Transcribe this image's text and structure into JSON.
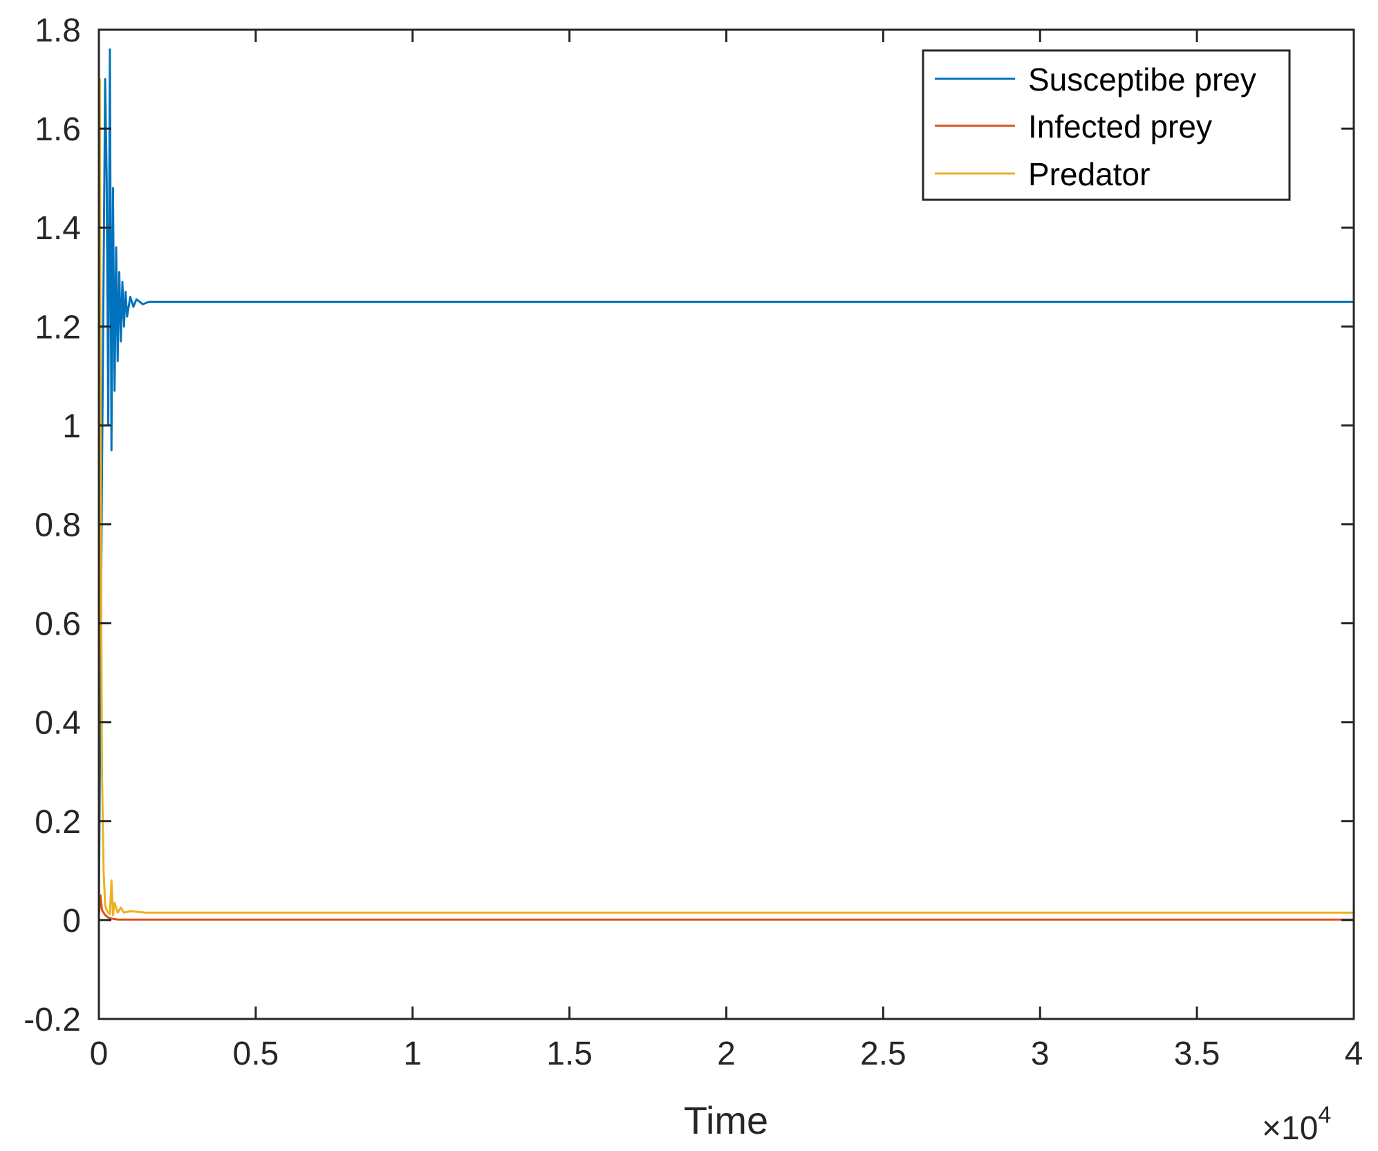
{
  "chart_data": {
    "type": "line",
    "title": "",
    "xlabel": "Time",
    "ylabel": "",
    "x_exponent_label": "×10",
    "x_exponent_power": "4",
    "xlim": [
      0,
      4
    ],
    "ylim": [
      -0.2,
      1.8
    ],
    "xticks": [
      0,
      0.5,
      1,
      1.5,
      2,
      2.5,
      3,
      3.5,
      4
    ],
    "xtick_labels": [
      "0",
      "0.5",
      "1",
      "1.5",
      "2",
      "2.5",
      "3",
      "3.5",
      "4"
    ],
    "yticks": [
      -0.2,
      0,
      0.2,
      0.4,
      0.6,
      0.8,
      1,
      1.2,
      1.4,
      1.6,
      1.8
    ],
    "ytick_labels": [
      "-0.2",
      "0",
      "0.2",
      "0.4",
      "0.6",
      "0.8",
      "1",
      "1.2",
      "1.4",
      "1.6",
      "1.8"
    ],
    "grid": false,
    "legend_position": "top-right",
    "series": [
      {
        "name": "Susceptibe prey",
        "color": "#0072BD",
        "x": [
          0,
          0.01,
          0.02,
          0.025,
          0.03,
          0.035,
          0.04,
          0.045,
          0.05,
          0.055,
          0.06,
          0.065,
          0.07,
          0.075,
          0.08,
          0.085,
          0.09,
          0.1,
          0.11,
          0.12,
          0.14,
          0.16,
          0.2,
          0.4,
          1,
          2,
          3,
          4
        ],
        "y": [
          0.02,
          0.9,
          1.7,
          1.5,
          1.0,
          1.76,
          0.95,
          1.48,
          1.07,
          1.36,
          1.13,
          1.31,
          1.17,
          1.29,
          1.2,
          1.27,
          1.22,
          1.26,
          1.24,
          1.255,
          1.245,
          1.25,
          1.25,
          1.25,
          1.25,
          1.25,
          1.25,
          1.25
        ]
      },
      {
        "name": "Infected prey",
        "color": "#D95319",
        "x": [
          0,
          0.005,
          0.01,
          0.02,
          0.03,
          0.04,
          0.05,
          0.06,
          0.1,
          0.2,
          1,
          2,
          3,
          4
        ],
        "y": [
          0.01,
          0.05,
          0.02,
          0.01,
          0.005,
          0.003,
          0.002,
          0.001,
          0.001,
          0.001,
          0.001,
          0.001,
          0.001,
          0.001
        ]
      },
      {
        "name": "Predator",
        "color": "#EDB120",
        "x": [
          0,
          0.003,
          0.006,
          0.01,
          0.015,
          0.02,
          0.025,
          0.03,
          0.035,
          0.04,
          0.045,
          0.05,
          0.06,
          0.07,
          0.08,
          0.1,
          0.15,
          1,
          2,
          3,
          4
        ],
        "y": [
          0.01,
          1.7,
          0.9,
          0.3,
          0.1,
          0.03,
          0.02,
          0.015,
          0.012,
          0.08,
          0.01,
          0.035,
          0.015,
          0.025,
          0.015,
          0.018,
          0.015,
          0.015,
          0.015,
          0.015,
          0.015
        ]
      }
    ]
  }
}
